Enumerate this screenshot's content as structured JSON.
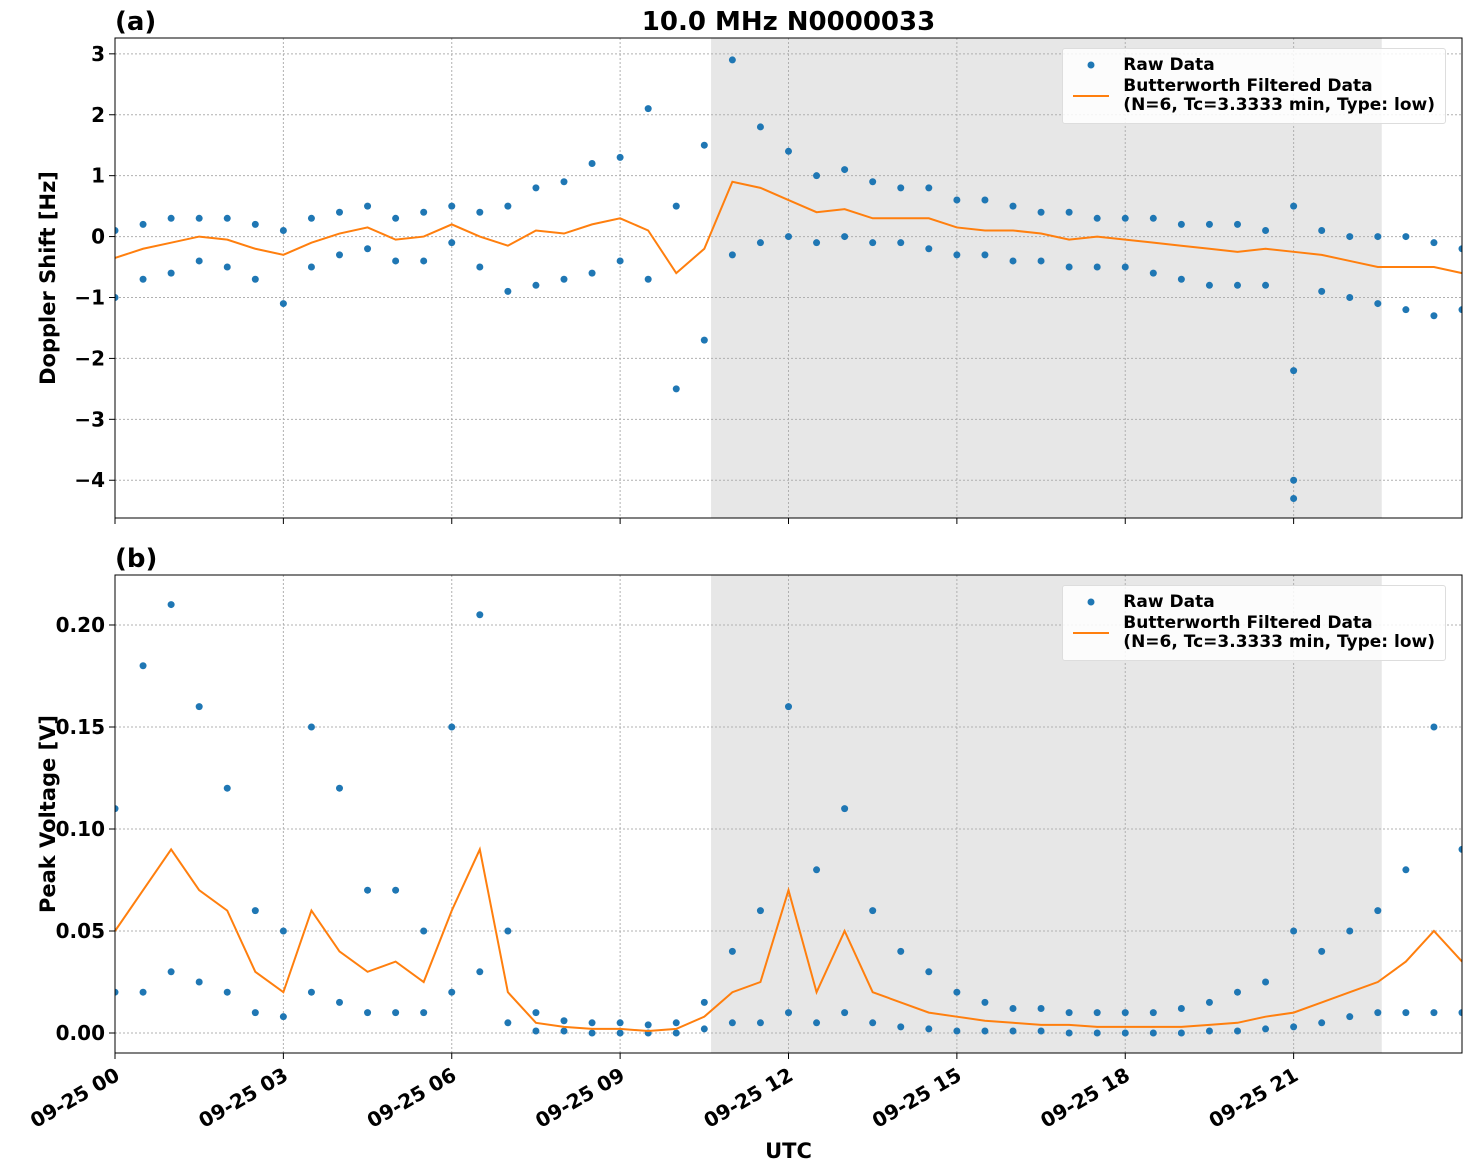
{
  "chart_data": [
    {
      "type": "line",
      "title": "10.0 MHz N0000033",
      "panel_label": "(a)",
      "ylabel": "Doppler Shift [Hz]",
      "xlim": [
        0,
        24
      ],
      "ylim": [
        -4.62,
        3.26
      ],
      "grid": true,
      "legend_loc": "upper right",
      "shaded_span": [
        10.62,
        22.57
      ],
      "xticks": [
        0,
        3,
        6,
        9,
        12,
        15,
        18,
        21
      ],
      "yticks": [
        {
          "value": -4,
          "label": "−4"
        },
        {
          "value": -3,
          "label": "−3"
        },
        {
          "value": -2,
          "label": "−2"
        },
        {
          "value": -1,
          "label": "−1"
        },
        0,
        1,
        2,
        3
      ],
      "series": [
        {
          "name": "Raw Data",
          "kind": "scatter",
          "color": "#1f77b4",
          "x": [
            0,
            0,
            0.5,
            0.5,
            1,
            1,
            1.5,
            1.5,
            2,
            2,
            2.5,
            2.5,
            3,
            3,
            3.5,
            3.5,
            4,
            4,
            4.5,
            4.5,
            5,
            5,
            5.5,
            5.5,
            6,
            6,
            6.5,
            6.5,
            7,
            7,
            7.5,
            7.5,
            8,
            8,
            8.5,
            8.5,
            9,
            9,
            9.5,
            9.5,
            10,
            10,
            10.5,
            10.5,
            11,
            11,
            11.5,
            11.5,
            12,
            12,
            12.5,
            12.5,
            13,
            13,
            13.5,
            13.5,
            14,
            14,
            14.5,
            14.5,
            15,
            15,
            15.5,
            15.5,
            16,
            16,
            16.5,
            16.5,
            17,
            17,
            17.5,
            17.5,
            18,
            18,
            18.5,
            18.5,
            19,
            19,
            19.5,
            19.5,
            20,
            20,
            20.5,
            20.5,
            21,
            21,
            21.5,
            21.5,
            22,
            22,
            22.5,
            22.5,
            23,
            23,
            23.5,
            23.5,
            24,
            24,
            21,
            21
          ],
          "values": [
            0.1,
            -1,
            0.2,
            -0.7,
            0.3,
            -0.6,
            0.3,
            -0.4,
            0.3,
            -0.5,
            0.2,
            -0.7,
            0.1,
            -1.1,
            0.3,
            -0.5,
            0.4,
            -0.3,
            0.5,
            -0.2,
            0.3,
            -0.4,
            0.4,
            -0.4,
            0.5,
            -0.1,
            0.4,
            -0.5,
            0.5,
            -0.9,
            0.8,
            -0.8,
            0.9,
            -0.7,
            1.2,
            -0.6,
            1.3,
            -0.4,
            2.1,
            -0.7,
            0.5,
            -2.5,
            1.5,
            -1.7,
            2.9,
            -0.3,
            1.8,
            -0.1,
            1.4,
            0,
            1,
            -0.1,
            1.1,
            0,
            0.9,
            -0.1,
            0.8,
            -0.1,
            0.8,
            -0.2,
            0.6,
            -0.3,
            0.6,
            -0.3,
            0.5,
            -0.4,
            0.4,
            -0.4,
            0.4,
            -0.5,
            0.3,
            -0.5,
            0.3,
            -0.5,
            0.3,
            -0.6,
            0.2,
            -0.7,
            0.2,
            -0.8,
            0.2,
            -0.8,
            0.1,
            -0.8,
            0.5,
            -2.2,
            0.1,
            -0.9,
            0,
            -1,
            0,
            -1.1,
            0,
            -1.2,
            -0.1,
            -1.3,
            -0.2,
            -1.2,
            -4.3,
            -4.0
          ]
        },
        {
          "name": "Butterworth Filtered Data\n(N=6, Tc=3.3333 min, Type: low)",
          "kind": "line",
          "color": "#ff7f0e",
          "x": [
            0,
            0.5,
            1,
            1.5,
            2,
            2.5,
            3,
            3.5,
            4,
            4.5,
            5,
            5.5,
            6,
            6.5,
            7,
            7.5,
            8,
            8.5,
            9,
            9.5,
            10,
            10.5,
            11,
            11.5,
            12,
            12.5,
            13,
            13.5,
            14,
            14.5,
            15,
            15.5,
            16,
            16.5,
            17,
            17.5,
            18,
            18.5,
            19,
            19.5,
            20,
            20.5,
            21,
            21.5,
            22,
            22.5,
            23,
            23.5,
            24
          ],
          "values": [
            -0.35,
            -0.2,
            -0.1,
            0,
            -0.05,
            -0.2,
            -0.3,
            -0.1,
            0.05,
            0.15,
            -0.05,
            0,
            0.2,
            0,
            -0.15,
            0.1,
            0.05,
            0.2,
            0.3,
            0.1,
            -0.6,
            -0.2,
            0.9,
            0.8,
            0.6,
            0.4,
            0.45,
            0.3,
            0.3,
            0.3,
            0.15,
            0.1,
            0.1,
            0.05,
            -0.05,
            0,
            -0.05,
            -0.1,
            -0.15,
            -0.2,
            -0.25,
            -0.2,
            -0.25,
            -0.3,
            -0.4,
            -0.5,
            -0.5,
            -0.5,
            -0.6
          ]
        }
      ]
    },
    {
      "type": "line",
      "panel_label": "(b)",
      "ylabel": "Peak Voltage [V]",
      "xlabel": "UTC",
      "xlim": [
        0,
        24
      ],
      "ylim": [
        -0.0098,
        0.2245
      ],
      "grid": true,
      "legend_loc": "upper right",
      "shaded_span": [
        10.62,
        22.57
      ],
      "xticks": [
        {
          "value": 0,
          "label": "09-25 00"
        },
        {
          "value": 3,
          "label": "09-25 03"
        },
        {
          "value": 6,
          "label": "09-25 06"
        },
        {
          "value": 9,
          "label": "09-25 09"
        },
        {
          "value": 12,
          "label": "09-25 12"
        },
        {
          "value": 15,
          "label": "09-25 15"
        },
        {
          "value": 18,
          "label": "09-25 18"
        },
        {
          "value": 21,
          "label": "09-25 21"
        }
      ],
      "yticks": [
        {
          "value": 0,
          "label": "0.00"
        },
        0.05,
        {
          "value": 0.1,
          "label": "0.10"
        },
        0.15,
        {
          "value": 0.2,
          "label": "0.20"
        }
      ],
      "series": [
        {
          "name": "Raw Data",
          "kind": "scatter",
          "color": "#1f77b4",
          "x": [
            0,
            0,
            0.5,
            0.5,
            1,
            1,
            1.5,
            1.5,
            2,
            2,
            2.5,
            2.5,
            3,
            3,
            3.5,
            3.5,
            4,
            4,
            4.5,
            4.5,
            5,
            5,
            5.5,
            5.5,
            6,
            6,
            6.5,
            6.5,
            7,
            7,
            7.5,
            7.5,
            8,
            8,
            8.5,
            8.5,
            9,
            9,
            9.5,
            9.5,
            10,
            10,
            10.5,
            10.5,
            11,
            11,
            11.5,
            11.5,
            12,
            12,
            12.5,
            12.5,
            13,
            13,
            13.5,
            13.5,
            14,
            14,
            14.5,
            14.5,
            15,
            15,
            15.5,
            15.5,
            16,
            16,
            16.5,
            16.5,
            17,
            17,
            17.5,
            17.5,
            18,
            18,
            18.5,
            18.5,
            19,
            19,
            19.5,
            19.5,
            20,
            20,
            20.5,
            20.5,
            21,
            21,
            21.5,
            21.5,
            22,
            22,
            22.5,
            22.5,
            23,
            23,
            23.5,
            23.5,
            24,
            24
          ],
          "values": [
            0.11,
            0.02,
            0.18,
            0.02,
            0.21,
            0.03,
            0.16,
            0.025,
            0.12,
            0.02,
            0.06,
            0.01,
            0.05,
            0.008,
            0.15,
            0.02,
            0.12,
            0.015,
            0.07,
            0.01,
            0.07,
            0.01,
            0.05,
            0.01,
            0.15,
            0.02,
            0.205,
            0.03,
            0.05,
            0.005,
            0.01,
            0.001,
            0.006,
            0.001,
            0.005,
            0,
            0.005,
            0,
            0.004,
            0,
            0.005,
            0,
            0.015,
            0.002,
            0.04,
            0.005,
            0.06,
            0.005,
            0.16,
            0.01,
            0.08,
            0.005,
            0.11,
            0.01,
            0.06,
            0.005,
            0.04,
            0.003,
            0.03,
            0.002,
            0.02,
            0.001,
            0.015,
            0.001,
            0.012,
            0.001,
            0.012,
            0.001,
            0.01,
            0,
            0.01,
            0,
            0.01,
            0,
            0.01,
            0,
            0.012,
            0,
            0.015,
            0.001,
            0.02,
            0.001,
            0.025,
            0.002,
            0.05,
            0.003,
            0.04,
            0.005,
            0.05,
            0.008,
            0.06,
            0.01,
            0.08,
            0.01,
            0.15,
            0.01,
            0.09,
            0.01
          ]
        },
        {
          "name": "Butterworth Filtered Data\n(N=6, Tc=3.3333 min, Type: low)",
          "kind": "line",
          "color": "#ff7f0e",
          "x": [
            0,
            0.5,
            1,
            1.5,
            2,
            2.5,
            3,
            3.5,
            4,
            4.5,
            5,
            5.5,
            6,
            6.5,
            7,
            7.5,
            8,
            8.5,
            9,
            9.5,
            10,
            10.5,
            11,
            11.5,
            12,
            12.5,
            13,
            13.5,
            14,
            14.5,
            15,
            15.5,
            16,
            16.5,
            17,
            17.5,
            18,
            18.5,
            19,
            19.5,
            20,
            20.5,
            21,
            21.5,
            22,
            22.5,
            23,
            23.5,
            24
          ],
          "values": [
            0.05,
            0.07,
            0.09,
            0.07,
            0.06,
            0.03,
            0.02,
            0.06,
            0.04,
            0.03,
            0.035,
            0.025,
            0.06,
            0.09,
            0.02,
            0.005,
            0.003,
            0.002,
            0.002,
            0.001,
            0.002,
            0.008,
            0.02,
            0.025,
            0.07,
            0.02,
            0.05,
            0.02,
            0.015,
            0.01,
            0.008,
            0.006,
            0.005,
            0.004,
            0.004,
            0.003,
            0.003,
            0.003,
            0.003,
            0.004,
            0.005,
            0.008,
            0.01,
            0.015,
            0.02,
            0.025,
            0.035,
            0.05,
            0.035
          ]
        }
      ]
    }
  ]
}
